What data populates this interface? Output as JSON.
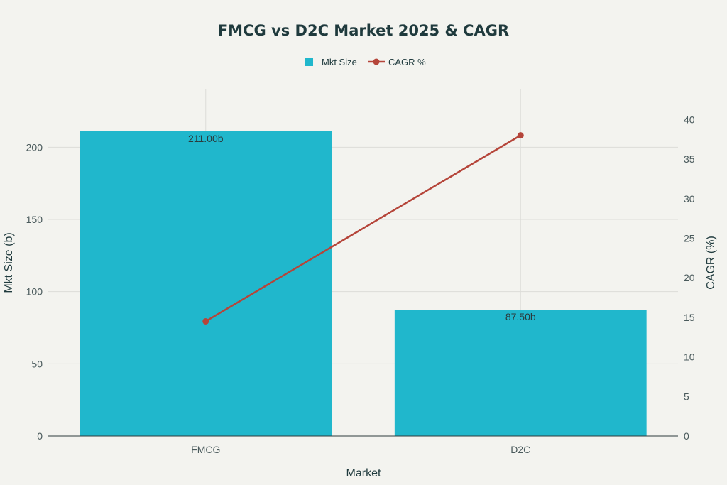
{
  "chart_data": {
    "type": "bar",
    "title": "FMCG vs D2C Market 2025 & CAGR",
    "xlabel": "Market",
    "ylabel": "Mkt Size (b)",
    "y2label": "CAGR (%)",
    "categories": [
      "FMCG",
      "D2C"
    ],
    "series": [
      {
        "name": "Mkt Size",
        "type": "bar",
        "axis": "left",
        "values": [
          211.0,
          87.5
        ],
        "color": "#20b7cc",
        "labels": [
          "211.00b",
          "87.50b"
        ]
      },
      {
        "name": "CAGR %",
        "type": "line",
        "axis": "right",
        "values": [
          14.5,
          38.0
        ],
        "color": "#b5453a"
      }
    ],
    "ylim": [
      0,
      240
    ],
    "y2lim": [
      0,
      43.8
    ],
    "yticks": [
      0,
      50,
      100,
      150,
      200
    ],
    "y2ticks": [
      0,
      5,
      10,
      15,
      20,
      25,
      30,
      35,
      40
    ],
    "grid": true,
    "legend_position": "top-center"
  }
}
